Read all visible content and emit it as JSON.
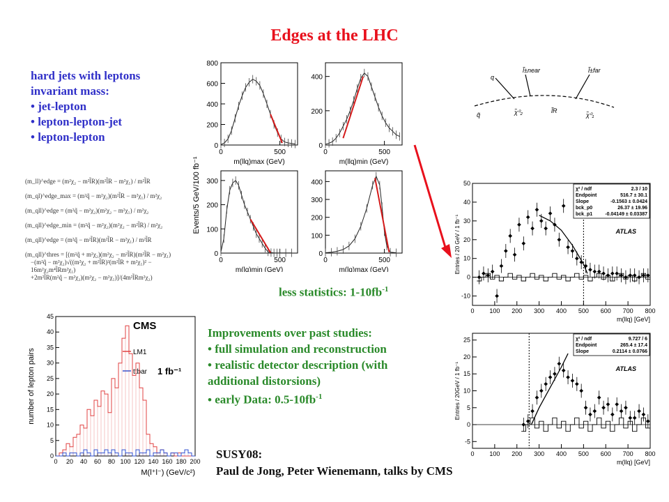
{
  "title": "Edges at the LHC",
  "intro": {
    "heading_lines": [
      "hard jets with leptons",
      "invariant mass:"
    ],
    "bullets": [
      "jet-lepton",
      "lepton-lepton-jet",
      "lepton-lepton"
    ]
  },
  "less_stats": {
    "text": "less statistics: 1-10fb",
    "sup": "-1"
  },
  "improvements": {
    "heading": "Improvements over past studies:",
    "bullets": [
      {
        "text": "full simulation and reconstruction",
        "sup": ""
      },
      {
        "text": "realistic detector description (with additional distorsions)",
        "sup": ""
      },
      {
        "text": "early Data: 0.5-10fb",
        "sup": "-1"
      }
    ]
  },
  "credits": {
    "line1": "SUSY08:",
    "line2": "Paul de Jong, Peter Wienemann, talks by CMS"
  },
  "formulas": [
    "(m_ll)^edge = (m²χ₂ − m²l̃R)(m²l̃R − m²χ₁) / m²l̃R",
    "(m_ql)^edge_max = (m²q̃ − m²χ₂)(m²l̃R − m²χ₁) / m²χ₂",
    "(m_qll)^edge = (m²q̃ − m²χ₂)(m²χ₂ − m²χ₁) / m²χ₂",
    "(m_qll)^edge_min = (m²q̃ − m²χ₂)(m²χ₂ − m²l̃R) / m²χ₂",
    "(m_qll)^edge = (m²q̃ − m²l̃R)(m²l̃R − m²χ₁) / m²l̃R",
    "(m_qll)^thres = [(m²q̃ + m²χ₂)(m²χ₂ − m²l̃R)(m²l̃R − m²χ₁)",
    "−(m²q̃ − m²χ₂)√((m²χ₂ + m²l̃R)²(m²l̃R + m²χ₁)² − 16m²χ₂m⁴l̃Rm²χ₁)",
    "+2m²l̃R(m²q̃ − m²χ₂)(m²χ₂ − m²χ₁)]/(4m²l̃Rm²χ₂)"
  ],
  "diagram": {
    "labels": [
      "q",
      "l̃±near",
      "l̃±far",
      "q̃",
      "χ̃⁰₂",
      "l̃R",
      "χ̃⁰₁"
    ],
    "colors": {
      "line": "#000000"
    }
  },
  "chart_data": [
    {
      "type": "line",
      "panel": "top-left",
      "ylabel": "Events/5 GeV/100 fb⁻¹",
      "xlabel": "m(llq)max (GeV)",
      "yticks": [
        "800",
        "600",
        "400",
        "200",
        "0"
      ],
      "xticks": [
        "0",
        "500"
      ],
      "ylim": [
        0,
        800
      ],
      "xlim": [
        0,
        650
      ],
      "fit_color": "#d41a1a",
      "series": [
        {
          "x": [
            0,
            30,
            60,
            90,
            120,
            150,
            180,
            210,
            240,
            270,
            300,
            330,
            360,
            390,
            420,
            450,
            480,
            510,
            540,
            570,
            600,
            630
          ],
          "y": [
            5,
            20,
            60,
            140,
            260,
            380,
            480,
            560,
            610,
            640,
            620,
            580,
            500,
            400,
            300,
            200,
            120,
            60,
            30,
            20,
            15,
            10
          ]
        }
      ],
      "fit": {
        "x": [
          420,
          520
        ],
        "y": [
          300,
          20
        ]
      }
    },
    {
      "type": "line",
      "panel": "top-right",
      "ylabel": "",
      "xlabel": "m(llq)min (GeV)",
      "yticks": [
        "400",
        "200",
        "0"
      ],
      "xticks": [
        "0",
        "500"
      ],
      "ylim": [
        0,
        480
      ],
      "xlim": [
        0,
        650
      ],
      "fit_color": "#d41a1a",
      "series": [
        {
          "x": [
            0,
            30,
            60,
            90,
            120,
            150,
            180,
            210,
            240,
            270,
            300,
            330,
            360,
            390,
            420,
            450,
            480,
            510,
            540,
            570,
            600,
            630
          ],
          "y": [
            5,
            10,
            20,
            40,
            70,
            110,
            150,
            200,
            260,
            330,
            390,
            420,
            400,
            340,
            280,
            220,
            170,
            130,
            100,
            80,
            60,
            50
          ]
        }
      ],
      "fit": {
        "x": [
          150,
          320
        ],
        "y": [
          40,
          400
        ]
      }
    },
    {
      "type": "line",
      "panel": "bottom-left",
      "ylabel": "",
      "xlabel": "m(lq)min (GeV)",
      "yticks": [
        "300",
        "200",
        "100",
        "0"
      ],
      "xticks": [
        "0",
        "500"
      ],
      "ylim": [
        0,
        340
      ],
      "xlim": [
        0,
        650
      ],
      "fit_color": "#d41a1a",
      "series": [
        {
          "x": [
            0,
            25,
            50,
            75,
            100,
            125,
            150,
            175,
            200,
            225,
            250,
            275,
            300,
            325,
            350,
            375,
            400,
            425,
            450,
            475,
            500,
            550,
            600
          ],
          "y": [
            5,
            60,
            180,
            260,
            290,
            300,
            280,
            240,
            200,
            170,
            140,
            110,
            80,
            60,
            40,
            20,
            5,
            2,
            1,
            1,
            1,
            1,
            1
          ]
        }
      ],
      "fit": {
        "x": [
          250,
          420
        ],
        "y": [
          140,
          2
        ]
      }
    },
    {
      "type": "line",
      "panel": "bottom-right",
      "ylabel": "",
      "xlabel": "m(lq)max (GeV)",
      "yticks": [
        "400",
        "300",
        "200",
        "100",
        "0"
      ],
      "xticks": [
        "0",
        "500"
      ],
      "ylim": [
        0,
        460
      ],
      "xlim": [
        0,
        650
      ],
      "fit_color": "#d41a1a",
      "series": [
        {
          "x": [
            0,
            50,
            100,
            150,
            200,
            250,
            300,
            350,
            400,
            430,
            460,
            480,
            500,
            520,
            550,
            600
          ],
          "y": [
            2,
            5,
            10,
            20,
            40,
            80,
            150,
            250,
            380,
            430,
            380,
            260,
            120,
            40,
            5,
            2
          ]
        }
      ],
      "fit": {
        "x": [
          420,
          540
        ],
        "y": [
          420,
          5
        ]
      }
    },
    {
      "type": "scatter",
      "panel": "atlas-top",
      "ylabel": "Entries / 20 GeV / 1 fb⁻¹",
      "xlabel": "m(llq) [GeV]",
      "yticks": [
        "50",
        "40",
        "30",
        "20",
        "10",
        "0",
        "-10"
      ],
      "xticks": [
        "0",
        "100",
        "200",
        "300",
        "400",
        "500",
        "600",
        "700",
        "800"
      ],
      "ylim": [
        -15,
        50
      ],
      "xlim": [
        0,
        800
      ],
      "label": "ATLAS",
      "stats": [
        [
          "χ² / ndf",
          "2.3 / 10"
        ],
        [
          "Endpoint",
          "516.7 ± 30.1"
        ],
        [
          "Slope",
          "-0.1563 ± 0.0424"
        ],
        [
          "bck_p0",
          "26.37 ± 19.96"
        ],
        [
          "bck_p1",
          "-0.04149 ± 0.03387"
        ]
      ],
      "points": {
        "x": [
          30,
          50,
          70,
          90,
          110,
          130,
          150,
          170,
          190,
          210,
          230,
          250,
          270,
          290,
          310,
          330,
          350,
          370,
          390,
          410,
          430,
          450,
          470,
          490,
          510,
          530,
          550,
          570,
          590,
          610,
          630,
          650,
          670,
          690,
          710,
          730,
          750,
          770,
          790
        ],
        "y": [
          0,
          2,
          1,
          3,
          -10,
          6,
          14,
          22,
          12,
          28,
          18,
          32,
          26,
          36,
          30,
          26,
          34,
          28,
          20,
          38,
          16,
          14,
          10,
          8,
          6,
          4,
          3,
          3,
          2,
          1,
          2,
          2,
          1,
          0,
          1,
          1,
          0,
          1,
          1
        ]
      },
      "fit": {
        "x": [
          300,
          350,
          400,
          450,
          500,
          517
        ],
        "y": [
          33,
          30,
          25,
          17,
          7,
          2
        ]
      },
      "endpoint_line": 500
    },
    {
      "type": "scatter",
      "panel": "atlas-bottom",
      "ylabel": "Entries / 20GeV / 1 fb⁻¹",
      "xlabel": "m(llq) [GeV]",
      "yticks": [
        "25",
        "20",
        "15",
        "10",
        "5",
        "0",
        "-5"
      ],
      "xticks": [
        "0",
        "100",
        "200",
        "300",
        "400",
        "500",
        "600",
        "700",
        "800"
      ],
      "ylim": [
        -7,
        27
      ],
      "xlim": [
        0,
        800
      ],
      "label": "ATLAS",
      "stats": [
        [
          "χ² / ndf",
          "9.727 / 6"
        ],
        [
          "Endpoint",
          "265.4 ± 17.4"
        ],
        [
          "Slope",
          "0.2114 ± 0.0766"
        ]
      ],
      "points": {
        "x": [
          230,
          250,
          270,
          290,
          310,
          330,
          350,
          370,
          390,
          410,
          430,
          450,
          470,
          490,
          510,
          530,
          550,
          570,
          590,
          610,
          630,
          650,
          670,
          690,
          710,
          730,
          750,
          770,
          790
        ],
        "y": [
          0,
          1,
          4,
          8,
          10,
          12,
          14,
          15,
          18,
          16,
          14,
          13,
          12,
          10,
          5,
          3,
          4,
          8,
          5,
          6,
          3,
          6,
          4,
          5,
          2,
          2,
          4,
          3,
          1
        ]
      },
      "fit": {
        "x": [
          265,
          300,
          350,
          400,
          430
        ],
        "y": [
          0,
          5,
          11,
          17,
          21
        ]
      },
      "endpoint_line": 255
    },
    {
      "type": "bar",
      "panel": "cms",
      "title": "CMS",
      "ylabel": "number of lepton pairs",
      "xlabel": "M(l⁺l⁻) (GeV/c²)",
      "lumi": "1 fb⁻¹",
      "yticks": [
        "45",
        "40",
        "35",
        "30",
        "25",
        "20",
        "15",
        "10",
        "5",
        "0"
      ],
      "xticks": [
        "0",
        "20",
        "40",
        "60",
        "80",
        "100",
        "120",
        "140",
        "160",
        "180",
        "200"
      ],
      "ylim": [
        0,
        45
      ],
      "xlim": [
        0,
        200
      ],
      "legend": [
        {
          "name": "LM1",
          "color": "#e04040"
        },
        {
          "name": "ttbar",
          "color": "#3050d0"
        }
      ],
      "series": [
        {
          "name": "LM1",
          "values": [
            0,
            1,
            2,
            4,
            3,
            6,
            7,
            10,
            9,
            15,
            13,
            18,
            16,
            21,
            20,
            14,
            25,
            22,
            30,
            38,
            42,
            33,
            26,
            30,
            22,
            18,
            7,
            4,
            3,
            1,
            2,
            1,
            0,
            1,
            0,
            1,
            0,
            0,
            0,
            0
          ]
        },
        {
          "name": "ttbar",
          "values": [
            0,
            0,
            1,
            0,
            1,
            1,
            0,
            1,
            2,
            1,
            0,
            2,
            1,
            1,
            2,
            1,
            2,
            1,
            0,
            2,
            1,
            1,
            0,
            2,
            1,
            1,
            2,
            0,
            1,
            1,
            2,
            1,
            0,
            1,
            1,
            0,
            1,
            2,
            1,
            0
          ]
        }
      ]
    }
  ]
}
